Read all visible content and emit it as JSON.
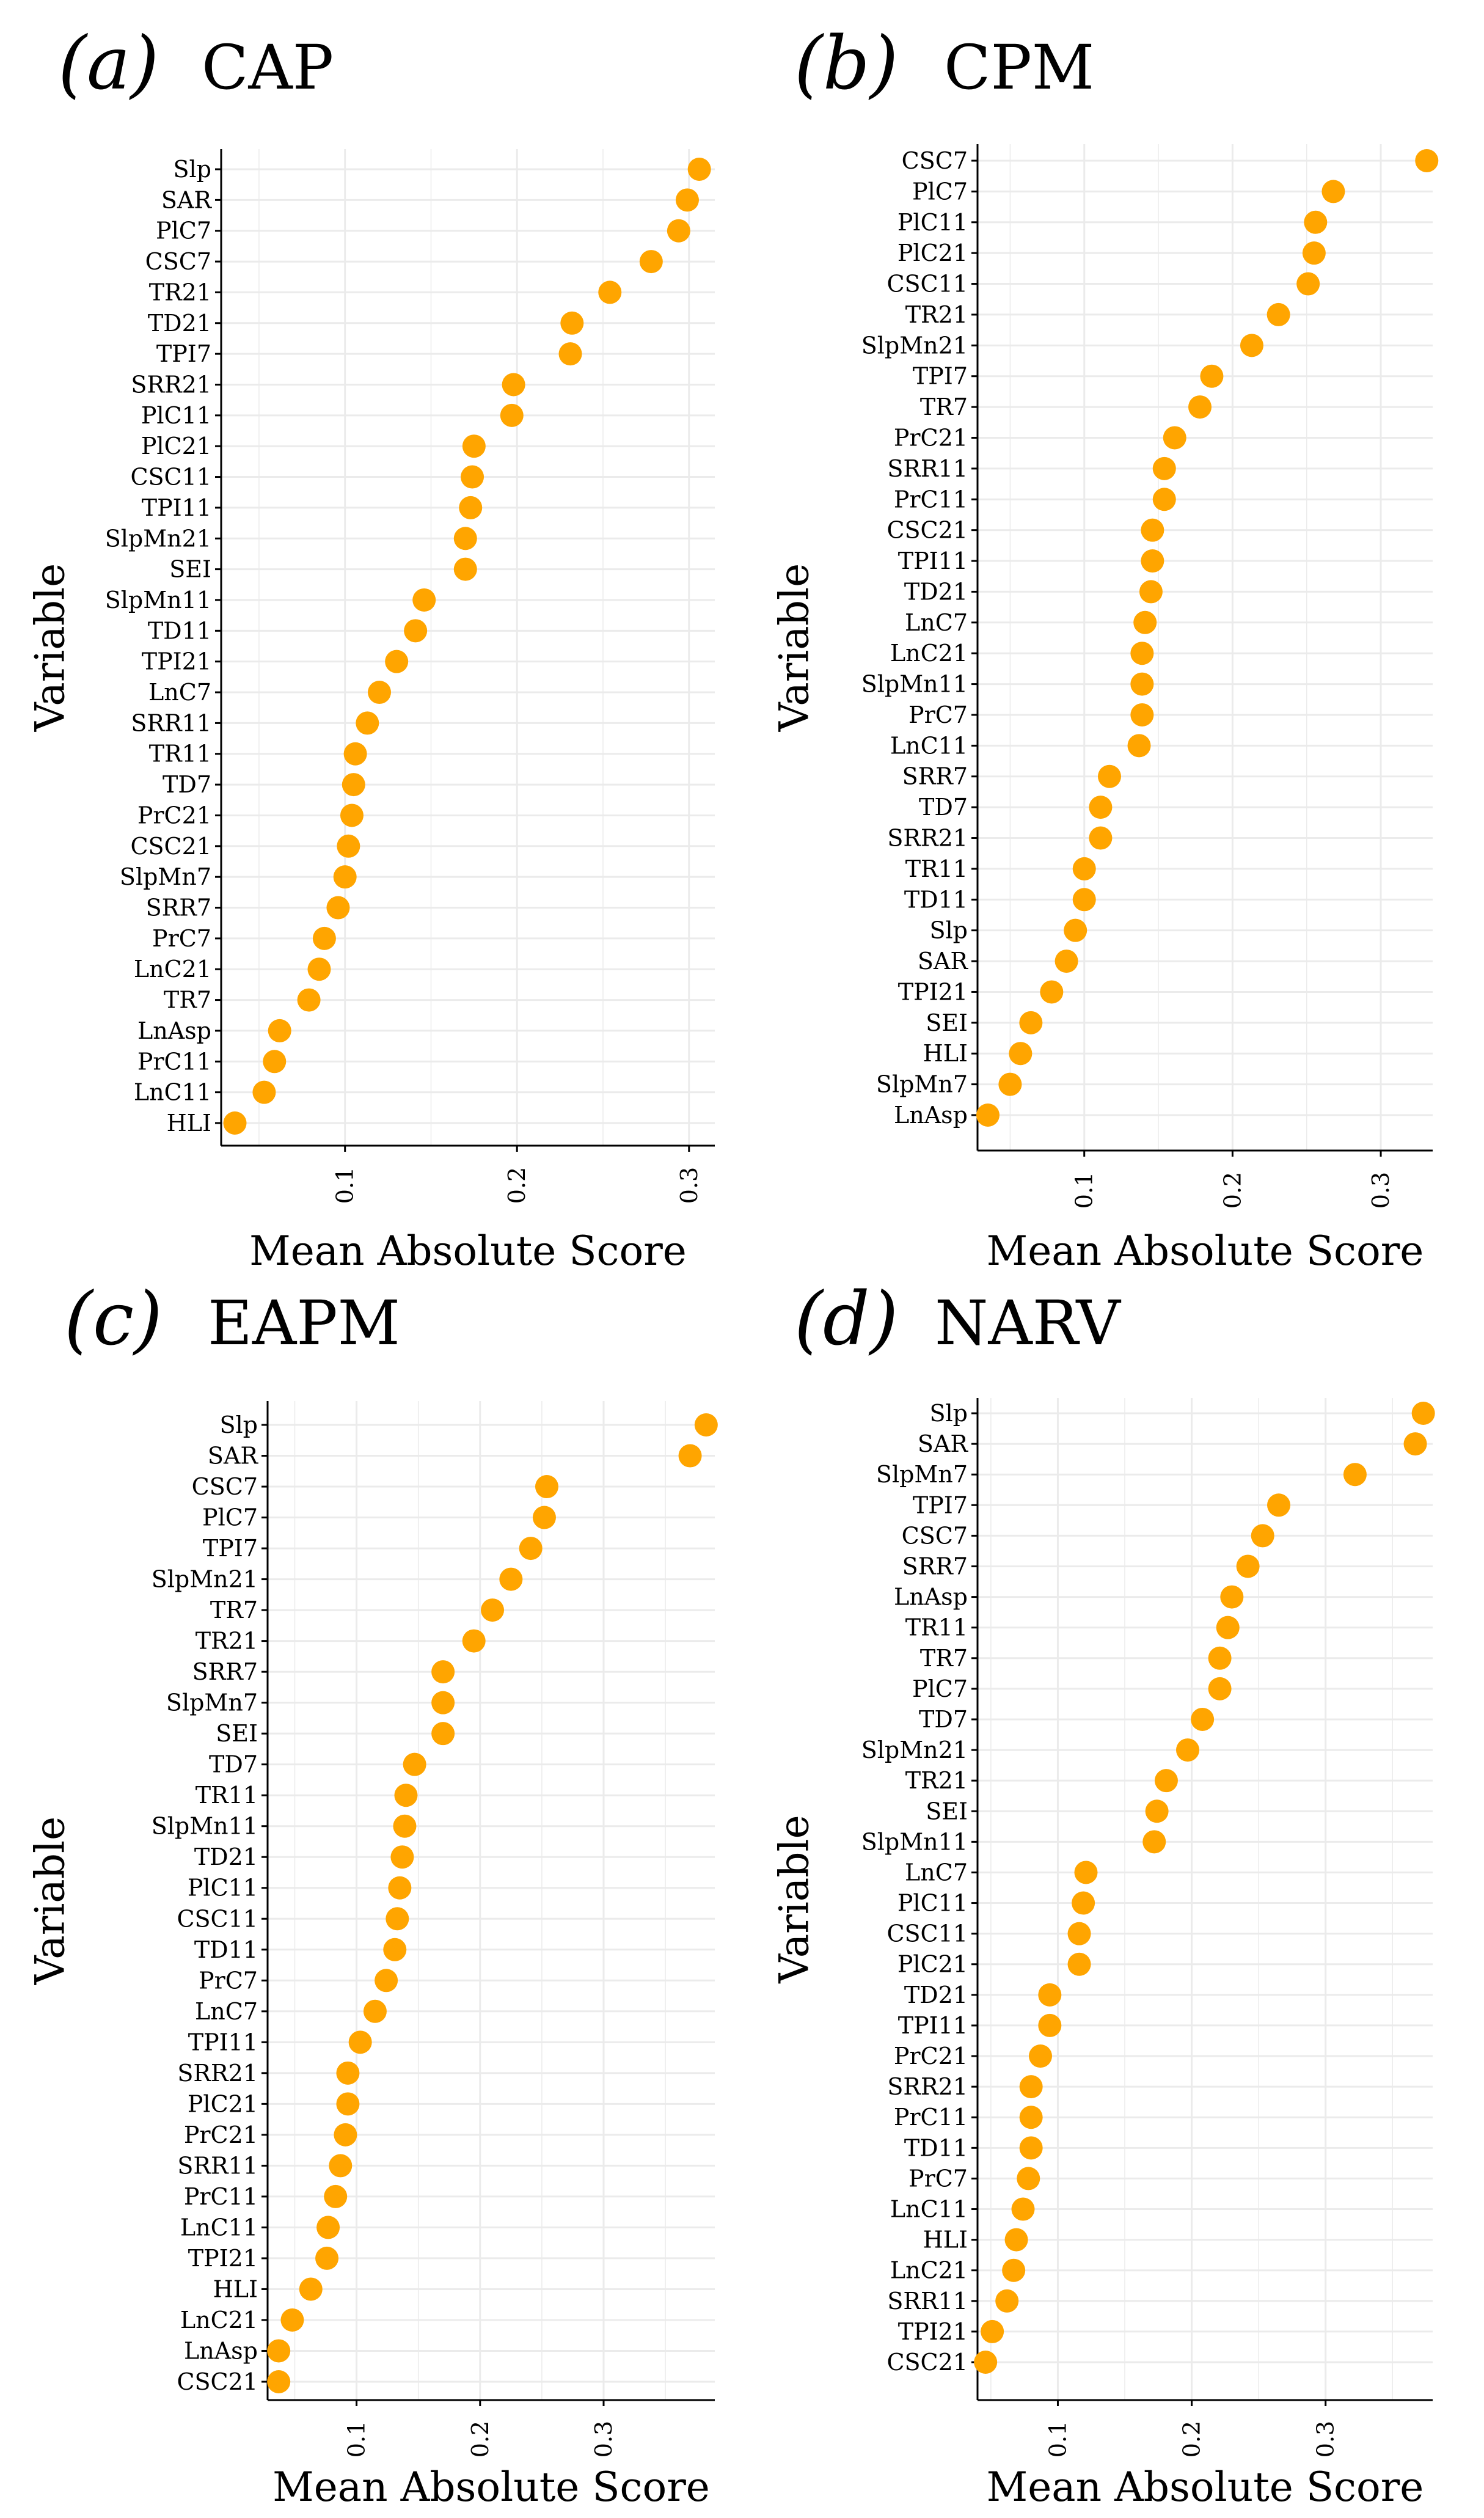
{
  "colors": {
    "point": "#FFA500",
    "grid": "#EBEBEB",
    "axis": "#000000"
  },
  "chart_data": [
    {
      "type": "scatter",
      "panel_label": "(a)",
      "title": "CAP",
      "xlabel": "Mean Absolute Score",
      "ylabel": "Variable",
      "xlim": [
        0.028,
        0.315
      ],
      "xticks": [
        0.1,
        0.2,
        0.3
      ],
      "xtick_labels": [
        "0.1",
        "0.2",
        "0.3"
      ],
      "grid": true,
      "categories": [
        "Slp",
        "SAR",
        "PlC7",
        "CSC7",
        "TR21",
        "TD21",
        "TPI7",
        "SRR21",
        "PlC11",
        "PlC21",
        "CSC11",
        "TPI11",
        "SlpMn21",
        "SEI",
        "SlpMn11",
        "TD11",
        "TPI21",
        "LnC7",
        "SRR11",
        "TR11",
        "TD7",
        "PrC21",
        "CSC21",
        "SlpMn7",
        "SRR7",
        "PrC7",
        "LnC21",
        "TR7",
        "LnAsp",
        "PrC11",
        "LnC11",
        "HLI"
      ],
      "values": [
        0.306,
        0.299,
        0.294,
        0.278,
        0.254,
        0.232,
        0.231,
        0.198,
        0.197,
        0.175,
        0.174,
        0.173,
        0.17,
        0.17,
        0.146,
        0.141,
        0.13,
        0.12,
        0.113,
        0.106,
        0.105,
        0.104,
        0.102,
        0.1,
        0.096,
        0.088,
        0.085,
        0.079,
        0.062,
        0.059,
        0.053,
        0.036
      ]
    },
    {
      "type": "scatter",
      "panel_label": "(b)",
      "title": "CPM",
      "xlabel": "Mean Absolute Score",
      "ylabel": "Variable",
      "xlim": [
        0.028,
        0.335
      ],
      "xticks": [
        0.1,
        0.2,
        0.3
      ],
      "xtick_labels": [
        "0.1",
        "0.2",
        "0.3"
      ],
      "grid": true,
      "categories": [
        "CSC7",
        "PlC7",
        "PlC11",
        "PlC21",
        "CSC11",
        "TR21",
        "SlpMn21",
        "TPI7",
        "TR7",
        "PrC21",
        "SRR11",
        "PrC11",
        "CSC21",
        "TPI11",
        "TD21",
        "LnC7",
        "LnC21",
        "SlpMn11",
        "PrC7",
        "LnC11",
        "SRR7",
        "TD7",
        "SRR21",
        "TR11",
        "TD11",
        "Slp",
        "SAR",
        "TPI21",
        "SEI",
        "HLI",
        "SlpMn7",
        "LnAsp"
      ],
      "values": [
        0.331,
        0.268,
        0.256,
        0.255,
        0.251,
        0.231,
        0.213,
        0.186,
        0.178,
        0.161,
        0.154,
        0.154,
        0.146,
        0.146,
        0.145,
        0.141,
        0.139,
        0.139,
        0.139,
        0.137,
        0.117,
        0.111,
        0.111,
        0.1,
        0.1,
        0.094,
        0.088,
        0.078,
        0.064,
        0.057,
        0.05,
        0.035
      ]
    },
    {
      "type": "scatter",
      "panel_label": "(c)",
      "title": "EAPM",
      "xlabel": "Mean Absolute Score",
      "ylabel": "Variable",
      "xlim": [
        0.028,
        0.39
      ],
      "xticks": [
        0.1,
        0.2,
        0.3
      ],
      "xtick_labels": [
        "0.1",
        "0.2",
        "0.3"
      ],
      "grid": true,
      "categories": [
        "Slp",
        "SAR",
        "CSC7",
        "PlC7",
        "TPI7",
        "SlpMn21",
        "TR7",
        "TR21",
        "SRR7",
        "SlpMn7",
        "SEI",
        "TD7",
        "TR11",
        "SlpMn11",
        "TD21",
        "PlC11",
        "CSC11",
        "TD11",
        "PrC7",
        "LnC7",
        "TPI11",
        "SRR21",
        "PlC21",
        "PrC21",
        "SRR11",
        "PrC11",
        "LnC11",
        "TPI21",
        "HLI",
        "LnC21",
        "LnAsp",
        "CSC21"
      ],
      "values": [
        0.383,
        0.37,
        0.254,
        0.252,
        0.241,
        0.225,
        0.21,
        0.195,
        0.17,
        0.17,
        0.17,
        0.147,
        0.14,
        0.139,
        0.137,
        0.135,
        0.133,
        0.131,
        0.124,
        0.115,
        0.103,
        0.093,
        0.093,
        0.091,
        0.087,
        0.083,
        0.077,
        0.076,
        0.063,
        0.048,
        0.037,
        0.037
      ]
    },
    {
      "type": "scatter",
      "panel_label": "(d)",
      "title": "NARV",
      "xlabel": "Mean Absolute Score",
      "ylabel": "Variable",
      "xlim": [
        0.04,
        0.38
      ],
      "xticks": [
        0.1,
        0.2,
        0.3
      ],
      "xtick_labels": [
        "0.1",
        "0.2",
        "0.3"
      ],
      "grid": true,
      "categories": [
        "Slp",
        "SAR",
        "SlpMn7",
        "TPI7",
        "CSC7",
        "SRR7",
        "LnAsp",
        "TR11",
        "TR7",
        "PlC7",
        "TD7",
        "SlpMn21",
        "TR21",
        "SEI",
        "SlpMn11",
        "LnC7",
        "PlC11",
        "CSC11",
        "PlC21",
        "TD21",
        "TPI11",
        "PrC21",
        "SRR21",
        "PrC11",
        "TD11",
        "PrC7",
        "LnC11",
        "HLI",
        "LnC21",
        "SRR11",
        "TPI21",
        "CSC21"
      ],
      "values": [
        0.373,
        0.367,
        0.322,
        0.265,
        0.253,
        0.242,
        0.23,
        0.227,
        0.221,
        0.221,
        0.208,
        0.197,
        0.181,
        0.174,
        0.172,
        0.121,
        0.119,
        0.116,
        0.116,
        0.094,
        0.094,
        0.087,
        0.08,
        0.08,
        0.08,
        0.078,
        0.074,
        0.069,
        0.067,
        0.062,
        0.051,
        0.046
      ]
    }
  ]
}
